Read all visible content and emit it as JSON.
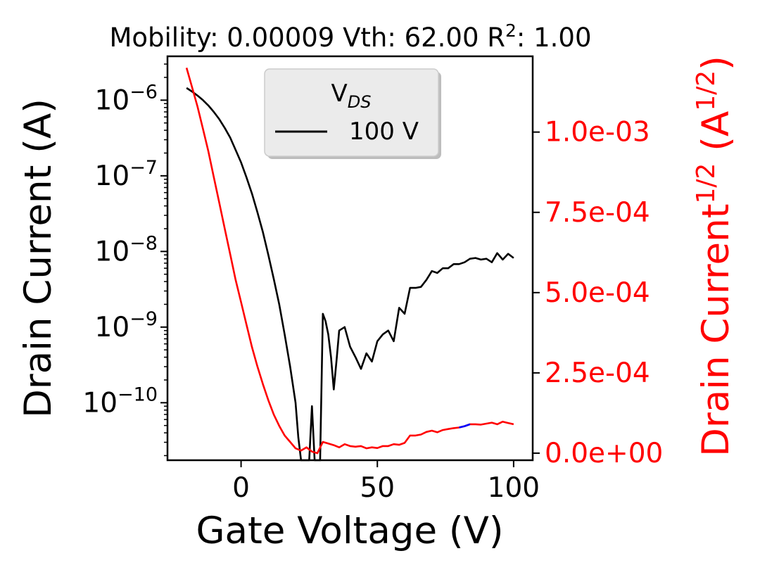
{
  "chart_data": {
    "type": "line",
    "title": {
      "prefix": "Mobility: 0.00009 Vth: 62.00 R",
      "sup": "2",
      "suffix": ": 1.00"
    },
    "xlabel": "Gate Voltage (V)",
    "ylabel_left": "Drain Current (A)",
    "ylabel_right": {
      "base": "Drain Current",
      "sup1": "1/2",
      "mid": " (A",
      "sup2": "1/2",
      "end": ")"
    },
    "xlim": [
      -27,
      107
    ],
    "ylim_left_log10": [
      -10.76,
      -5.42
    ],
    "ylim_right": [
      -2.2e-05,
      0.001236
    ],
    "x_ticks": [
      {
        "value": 0,
        "label": "0"
      },
      {
        "value": 50,
        "label": "50"
      },
      {
        "value": 100,
        "label": "100"
      }
    ],
    "y_left_ticks": [
      {
        "exp": -6,
        "base": "10",
        "sup": "−6"
      },
      {
        "exp": -7,
        "base": "10",
        "sup": "−7"
      },
      {
        "exp": -8,
        "base": "10",
        "sup": "−8"
      },
      {
        "exp": -9,
        "base": "10",
        "sup": "−9"
      },
      {
        "exp": -10,
        "base": "10",
        "sup": "−10"
      }
    ],
    "y_right_ticks": [
      {
        "value": 0,
        "label": "0.0e+00"
      },
      {
        "value": 0.00025,
        "label": "2.5e-04"
      },
      {
        "value": 0.0005,
        "label": "5.0e-04"
      },
      {
        "value": 0.00075,
        "label": "7.5e-04"
      },
      {
        "value": 0.001,
        "label": "1.0e-03"
      }
    ],
    "legend": {
      "title_base": "V",
      "title_sub": "DS",
      "entry": "100 V",
      "position": "top-center"
    },
    "colors": {
      "drain": "#000000",
      "sqrt": "#ff0000",
      "fit": "#0000ff",
      "right_axis": "#ff0000"
    },
    "series": [
      {
        "name": "100 V",
        "axis": "left",
        "x": [
          -20,
          -18,
          -16,
          -14,
          -12,
          -10,
          -8,
          -6,
          -4,
          -2,
          0,
          2,
          4,
          6,
          8,
          10,
          12,
          14,
          16,
          18,
          20,
          21,
          22,
          23,
          24,
          25,
          26,
          27,
          28,
          29,
          30,
          31,
          32,
          33,
          34,
          35,
          36,
          38,
          40,
          42,
          44,
          46,
          48,
          50,
          52,
          54,
          56,
          58,
          60,
          62,
          64,
          66,
          68,
          70,
          72,
          74,
          76,
          78,
          80,
          82,
          84,
          86,
          88,
          90,
          92,
          94,
          96,
          98,
          100
        ],
        "y": [
          1.45e-06,
          1.3e-06,
          1.15e-06,
          1e-06,
          8.5e-07,
          7e-07,
          5.6e-07,
          4.3e-07,
          3.2e-07,
          2.2e-07,
          1.5e-07,
          9.5e-08,
          5.8e-08,
          3.3e-08,
          1.8e-08,
          9e-09,
          4.3e-09,
          2e-09,
          8e-10,
          3e-10,
          1e-10,
          3.5e-11,
          1.5e-11,
          6e-12,
          2e-12,
          1.5e-11,
          9e-11,
          8e-12,
          7e-13,
          1e-11,
          1.5e-09,
          1.2e-09,
          8e-10,
          4e-10,
          1.5e-10,
          3.5e-10,
          9e-10,
          1e-09,
          5.5e-10,
          4e-10,
          2.8e-10,
          4.5e-10,
          3.5e-10,
          6.5e-10,
          8e-10,
          9e-10,
          6.5e-10,
          1.8e-09,
          1.5e-09,
          3.3e-09,
          3.3e-09,
          3.4e-09,
          4.2e-09,
          5.5e-09,
          5.2e-09,
          6e-09,
          6e-09,
          6.8e-09,
          6.8e-09,
          7.2e-09,
          8e-09,
          8.2e-09,
          7.8e-09,
          8e-09,
          7.2e-09,
          9.5e-09,
          7.8e-09,
          9.3e-09,
          8.2e-09
        ]
      },
      {
        "axis": "right",
        "x": [
          -20,
          -18,
          -16,
          -14,
          -12,
          -10,
          -8,
          -6,
          -4,
          -2,
          0,
          2,
          4,
          6,
          8,
          10,
          12,
          14,
          16,
          18,
          20,
          22,
          24,
          26,
          28,
          30,
          32,
          34,
          36,
          38,
          40,
          42,
          44,
          46,
          48,
          50,
          52,
          54,
          56,
          58,
          60,
          62,
          64,
          66,
          68,
          70,
          72,
          74,
          76,
          78,
          80,
          82,
          84,
          86,
          88,
          90,
          92,
          94,
          96,
          98,
          100
        ],
        "y": [
          0.0012,
          0.00114,
          0.00108,
          0.00101,
          0.00094,
          0.00086,
          0.00078,
          0.0007,
          0.00062,
          0.00054,
          0.00047,
          0.0004,
          0.00033,
          0.00027,
          0.000215,
          0.000165,
          0.00012,
          8.5e-05,
          5.5e-05,
          3.5e-05,
          1.5e-05,
          8e-06,
          1.8e-05,
          5e-06,
          0.0,
          3.5e-05,
          3e-05,
          2.5e-05,
          1.8e-05,
          2.8e-05,
          2.2e-05,
          2e-05,
          2.2e-05,
          1.5e-05,
          1.8e-05,
          1.6e-05,
          2.2e-05,
          2.2e-05,
          2.8e-05,
          2.6e-05,
          3.2e-05,
          5.5e-05,
          5.5e-05,
          5.8e-05,
          6.6e-05,
          7e-05,
          6.5e-05,
          7.2e-05,
          7.5e-05,
          7.8e-05,
          8e-05,
          8.4e-05,
          9e-05,
          9e-05,
          8.9e-05,
          9.2e-05,
          9.5e-05,
          9e-05,
          9.8e-05,
          9.4e-05,
          9e-05
        ]
      },
      {
        "axis": "right",
        "fit": true,
        "x": [
          80,
          82,
          84
        ],
        "y": [
          8e-05,
          8.4e-05,
          9e-05
        ]
      }
    ]
  }
}
